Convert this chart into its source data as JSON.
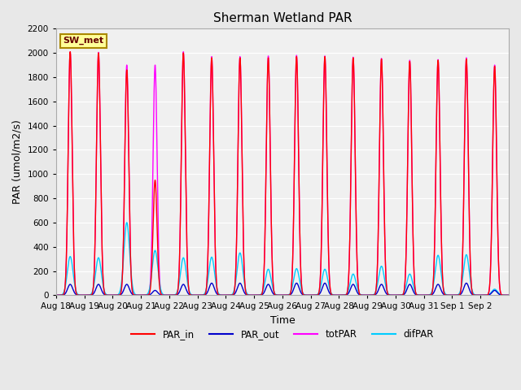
{
  "title": "Sherman Wetland PAR",
  "xlabel": "Time",
  "ylabel": "PAR (umol/m2/s)",
  "ylim": [
    0,
    2200
  ],
  "yticks": [
    0,
    200,
    400,
    600,
    800,
    1000,
    1200,
    1400,
    1600,
    1800,
    2000,
    2200
  ],
  "fig_bg_color": "#e8e8e8",
  "plot_bg_color": "#f0f0f0",
  "legend_label": "SW_met",
  "legend_box_color": "#ffff99",
  "legend_box_edge": "#aa8800",
  "lines": {
    "PAR_in": {
      "color": "#ff0000",
      "lw": 1.0
    },
    "PAR_out": {
      "color": "#0000cc",
      "lw": 1.0
    },
    "totPAR": {
      "color": "#ff00ff",
      "lw": 1.0
    },
    "difPAR": {
      "color": "#00ccff",
      "lw": 1.0
    }
  },
  "n_days": 16,
  "day_labels": [
    "Aug 18",
    "Aug 19",
    "Aug 20",
    "Aug 21",
    "Aug 22",
    "Aug 23",
    "Aug 24",
    "Aug 25",
    "Aug 26",
    "Aug 27",
    "Aug 28",
    "Aug 29",
    "Aug 30",
    "Aug 31",
    "Sep 1",
    "Sep 2"
  ],
  "peaks_PAR_in": [
    2010,
    2000,
    1860,
    950,
    2000,
    1960,
    1960,
    1960,
    1970,
    1970,
    1960,
    1950,
    1930,
    1940,
    1950,
    1890
  ],
  "peaks_totPAR": [
    2010,
    2005,
    1900,
    1900,
    2010,
    1970,
    1970,
    1975,
    1980,
    1975,
    1965,
    1955,
    1940,
    1945,
    1960,
    1900
  ],
  "peaks_PAR_out": [
    90,
    90,
    90,
    40,
    90,
    100,
    100,
    90,
    100,
    100,
    90,
    90,
    90,
    90,
    100,
    40
  ],
  "peaks_difPAR": [
    320,
    310,
    600,
    370,
    310,
    315,
    350,
    215,
    220,
    215,
    175,
    240,
    175,
    330,
    335,
    50
  ],
  "sigma_main": 0.07,
  "sigma_dif": 0.1,
  "sigma_out": 0.09
}
